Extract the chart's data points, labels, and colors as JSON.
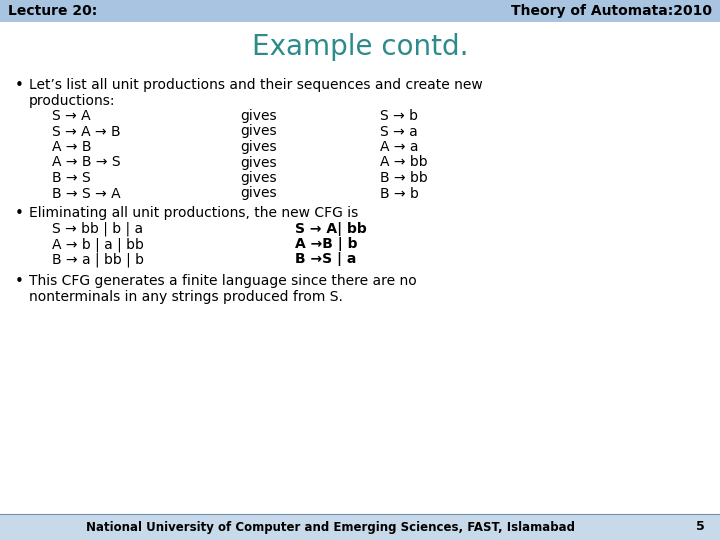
{
  "title": "Example contd.",
  "header_left": "Lecture 20:",
  "header_right": "Theory of Automata:2010",
  "header_bg": "#a8c4e0",
  "title_color": "#2e8b8b",
  "footer_text": "National University of Computer and Emerging Sciences, FAST, Islamabad",
  "footer_page": "5",
  "footer_bg": "#c8daea",
  "bg_color": "#ffffff",
  "bullet1_line1": "Let’s list all unit productions and their sequences and create new",
  "bullet1_line2": "productions:",
  "productions": [
    [
      "S → A",
      "gives",
      "S → b"
    ],
    [
      "S → A → B",
      "gives",
      "S → a"
    ],
    [
      "A → B",
      "gives",
      "A → a"
    ],
    [
      "A → B → S",
      "gives",
      "A → bb"
    ],
    [
      "B → S",
      "gives",
      "B → bb"
    ],
    [
      "B → S → A",
      "gives",
      "B → b"
    ]
  ],
  "bullet2_line1": "Eliminating all unit productions, the new CFG is",
  "new_cfg_left": [
    "S → bb | b | a",
    "A → b | a | bb",
    "B → a | bb | b"
  ],
  "new_cfg_right": [
    "S → A| bb",
    "A →B | b",
    "B →S | a"
  ],
  "bullet3_line1": "This CFG generates a finite language since there are no",
  "bullet3_line2": "nonterminals in any strings produced from S."
}
